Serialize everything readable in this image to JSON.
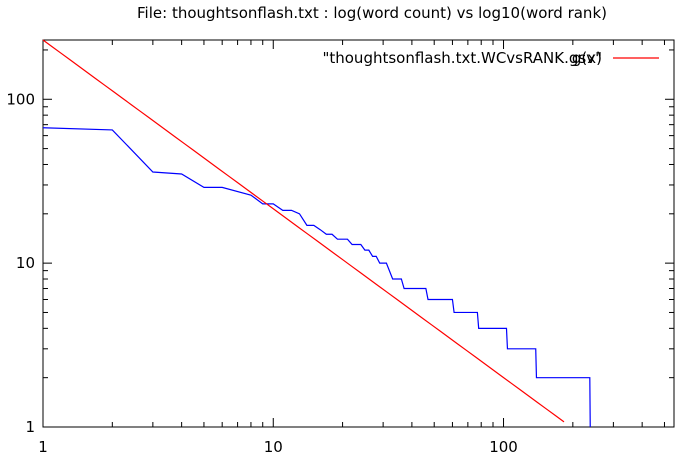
{
  "chart_data": {
    "type": "line",
    "title": "File: thoughtsonflash.txt : log(word count) vs log10(word rank)",
    "xscale": "log",
    "yscale": "log",
    "xlim": [
      1,
      550
    ],
    "ylim": [
      1,
      230
    ],
    "x_ticks": [
      1,
      10,
      100
    ],
    "x_tick_labels": [
      "1",
      "10",
      "100"
    ],
    "y_ticks": [
      1,
      10,
      100
    ],
    "y_tick_labels": [
      "1",
      "10",
      "100"
    ],
    "grid": false,
    "legend_position": "top-right",
    "series": [
      {
        "name": "\"thoughtsonflash.txt.WCvsRANK.gsv\"",
        "color": "#0000ff",
        "points": [
          [
            1,
            67
          ],
          [
            2,
            65
          ],
          [
            3,
            36
          ],
          [
            4,
            35
          ],
          [
            5,
            29
          ],
          [
            6,
            29
          ],
          [
            8,
            26
          ],
          [
            9,
            23
          ],
          [
            10,
            23
          ],
          [
            11,
            21
          ],
          [
            12,
            21
          ],
          [
            13,
            20
          ],
          [
            14,
            17
          ],
          [
            15,
            17
          ],
          [
            16,
            16
          ],
          [
            17,
            15
          ],
          [
            18,
            15
          ],
          [
            19,
            14
          ],
          [
            21,
            14
          ],
          [
            22,
            13
          ],
          [
            24,
            13
          ],
          [
            25,
            12
          ],
          [
            26,
            12
          ],
          [
            27,
            11
          ],
          [
            28,
            11
          ],
          [
            29,
            10
          ],
          [
            31,
            10
          ],
          [
            33,
            8
          ],
          [
            36,
            8
          ],
          [
            37,
            7
          ],
          [
            46,
            7
          ],
          [
            47,
            6
          ],
          [
            60,
            6
          ],
          [
            61,
            5
          ],
          [
            77,
            5
          ],
          [
            78,
            4
          ],
          [
            103,
            4
          ],
          [
            104,
            3
          ],
          [
            138,
            3
          ],
          [
            139,
            2
          ],
          [
            237,
            2
          ],
          [
            238,
            1
          ]
        ]
      },
      {
        "name": "g(x)",
        "color": "#ff0000",
        "function": "power",
        "coefficient": 230,
        "exponent": -1.03,
        "x_range": [
          1,
          200
        ]
      }
    ]
  }
}
